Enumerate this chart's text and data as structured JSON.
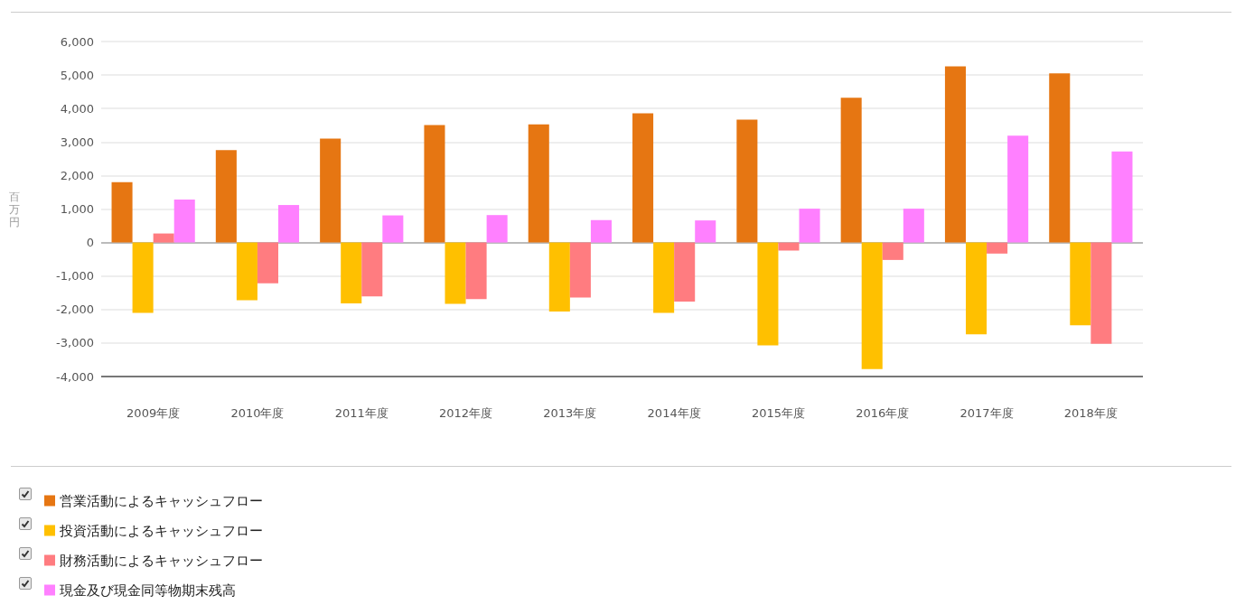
{
  "chart_data": {
    "type": "bar",
    "ylabel": "百万円",
    "categories": [
      "2009年度",
      "2010年度",
      "2011年度",
      "2012年度",
      "2013年度",
      "2014年度",
      "2015年度",
      "2016年度",
      "2017年度",
      "2018年度"
    ],
    "series": [
      {
        "name": "営業活動によるキャッシュフロー",
        "color": "#e67612",
        "values": [
          1800,
          2760,
          3100,
          3510,
          3530,
          3860,
          3670,
          4320,
          5260,
          5050
        ]
      },
      {
        "name": "投資活動によるキャッシュフロー",
        "color": "#ffc000",
        "values": [
          -2100,
          -1720,
          -1820,
          -1830,
          -2060,
          -2100,
          -3070,
          -3780,
          -2740,
          -2470
        ]
      },
      {
        "name": "財務活動によるキャッシュフロー",
        "color": "#ff7c80",
        "values": [
          270,
          -1220,
          -1610,
          -1690,
          -1640,
          -1760,
          -240,
          -520,
          -330,
          -3020
        ]
      },
      {
        "name": "現金及び現金同等物期末残高",
        "color": "#ff80ff",
        "values": [
          1280,
          1120,
          810,
          820,
          670,
          660,
          1010,
          1010,
          3190,
          2720
        ]
      }
    ],
    "ylim": [
      -4000,
      6000
    ],
    "yticks": [
      {
        "value": -4000,
        "label": "-4,000"
      },
      {
        "value": -3000,
        "label": "-3,000"
      },
      {
        "value": -2000,
        "label": "-2,000"
      },
      {
        "value": -1000,
        "label": "-1,000"
      },
      0,
      {
        "value": 1000,
        "label": "1,000"
      },
      {
        "value": 2000,
        "label": "2,000"
      },
      {
        "value": 3000,
        "label": "3,000"
      },
      {
        "value": 4000,
        "label": "4,000"
      },
      {
        "value": 5000,
        "label": "5,000"
      },
      {
        "value": 6000,
        "label": "6,000"
      }
    ],
    "grid": "y",
    "legend": "bottom left"
  }
}
